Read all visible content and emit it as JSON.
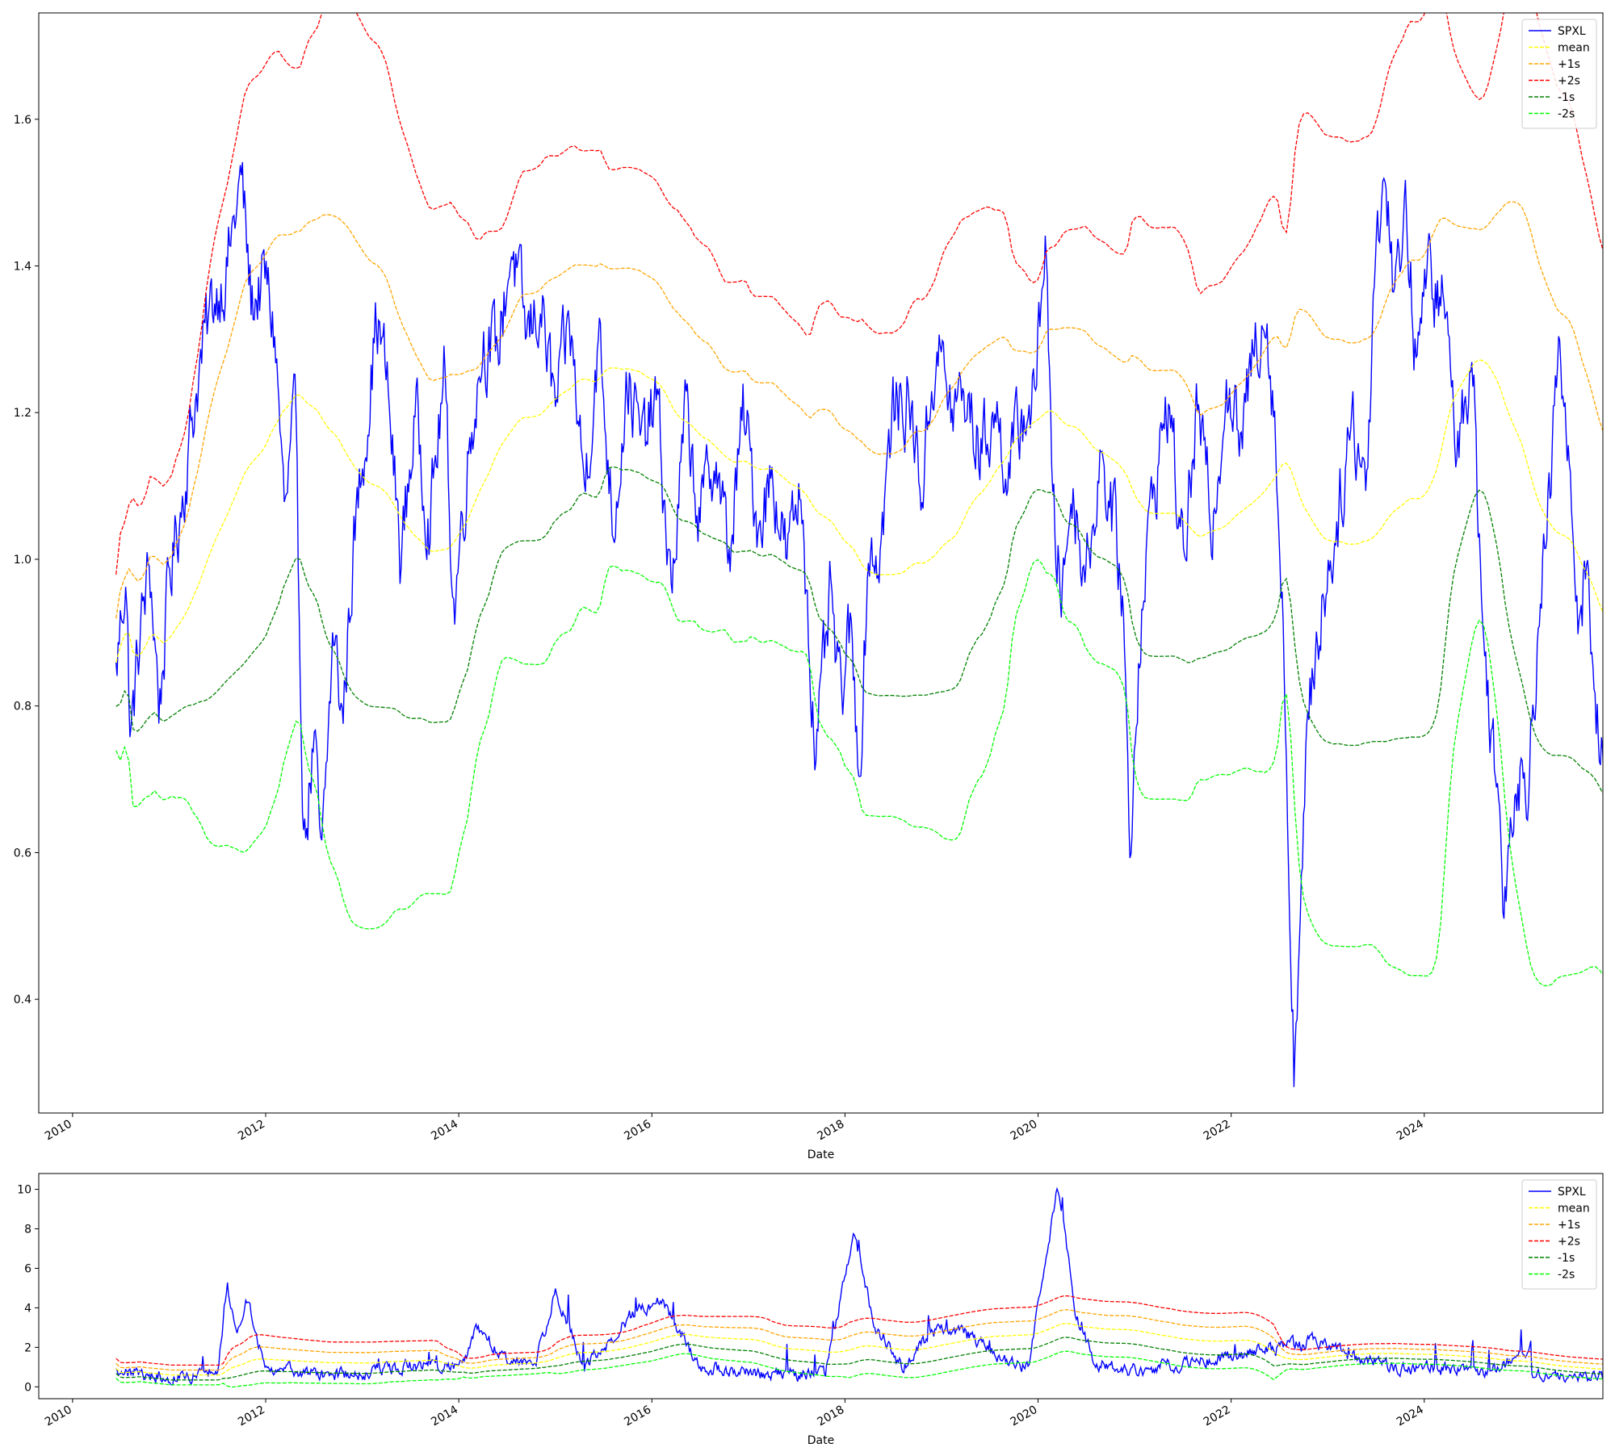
{
  "chart_data": [
    {
      "type": "line",
      "title": "",
      "xlabel": "Date",
      "ylabel": "",
      "xlim": [
        2009.65,
        2025.85
      ],
      "ylim": [
        0.245,
        1.745
      ],
      "x_ticks": [
        "2010",
        "2012",
        "2014",
        "2016",
        "2018",
        "2020",
        "2022",
        "2024"
      ],
      "y_ticks": [
        "0.4",
        "0.6",
        "0.8",
        "1.0",
        "1.2",
        "1.4",
        "1.6"
      ],
      "legend_position": "upper right",
      "grid": false,
      "series": [
        {
          "name": "SPXL",
          "color": "#0000ff",
          "style": "solid",
          "points": [
            [
              2010.45,
              0.84
            ],
            [
              2010.55,
              0.99
            ],
            [
              2010.6,
              0.75
            ],
            [
              2010.7,
              0.9
            ],
            [
              2010.8,
              0.99
            ],
            [
              2010.9,
              0.8
            ],
            [
              2011.0,
              0.97
            ],
            [
              2011.15,
              1.1
            ],
            [
              2011.3,
              1.25
            ],
            [
              2011.45,
              1.35
            ],
            [
              2011.6,
              1.4
            ],
            [
              2011.75,
              1.52
            ],
            [
              2011.85,
              1.35
            ],
            [
              2012.0,
              1.38
            ],
            [
              2012.1,
              1.3
            ],
            [
              2012.2,
              1.05
            ],
            [
              2012.3,
              1.2
            ],
            [
              2012.4,
              0.62
            ],
            [
              2012.5,
              0.75
            ],
            [
              2012.58,
              0.57
            ],
            [
              2012.7,
              0.9
            ],
            [
              2012.8,
              0.78
            ],
            [
              2012.9,
              1.0
            ],
            [
              2013.05,
              1.2
            ],
            [
              2013.15,
              1.33
            ],
            [
              2013.25,
              1.25
            ],
            [
              2013.4,
              1.0
            ],
            [
              2013.55,
              1.2
            ],
            [
              2013.7,
              1.05
            ],
            [
              2013.85,
              1.25
            ],
            [
              2013.95,
              0.93
            ],
            [
              2014.1,
              1.15
            ],
            [
              2014.25,
              1.3
            ],
            [
              2014.4,
              1.28
            ],
            [
              2014.55,
              1.43
            ],
            [
              2014.7,
              1.3
            ],
            [
              2014.85,
              1.35
            ],
            [
              2015.0,
              1.2
            ],
            [
              2015.15,
              1.32
            ],
            [
              2015.3,
              1.1
            ],
            [
              2015.45,
              1.3
            ],
            [
              2015.6,
              1.05
            ],
            [
              2015.75,
              1.25
            ],
            [
              2015.9,
              1.15
            ],
            [
              2016.05,
              1.22
            ],
            [
              2016.2,
              0.95
            ],
            [
              2016.35,
              1.2
            ],
            [
              2016.5,
              1.05
            ],
            [
              2016.65,
              1.15
            ],
            [
              2016.8,
              1.0
            ],
            [
              2016.95,
              1.2
            ],
            [
              2017.1,
              1.05
            ],
            [
              2017.25,
              1.12
            ],
            [
              2017.4,
              1.0
            ],
            [
              2017.55,
              1.1
            ],
            [
              2017.7,
              0.72
            ],
            [
              2017.85,
              0.95
            ],
            [
              2017.95,
              0.8
            ],
            [
              2018.05,
              0.9
            ],
            [
              2018.15,
              0.72
            ],
            [
              2018.25,
              1.02
            ],
            [
              2018.35,
              1.0
            ],
            [
              2018.5,
              1.2
            ],
            [
              2018.65,
              1.22
            ],
            [
              2018.8,
              1.1
            ],
            [
              2018.95,
              1.3
            ],
            [
              2019.1,
              1.2
            ],
            [
              2019.25,
              1.22
            ],
            [
              2019.4,
              1.15
            ],
            [
              2019.55,
              1.2
            ],
            [
              2019.7,
              1.12
            ],
            [
              2019.85,
              1.2
            ],
            [
              2019.97,
              1.22
            ],
            [
              2020.08,
              1.47
            ],
            [
              2020.15,
              1.05
            ],
            [
              2020.25,
              0.96
            ],
            [
              2020.35,
              1.1
            ],
            [
              2020.5,
              0.98
            ],
            [
              2020.65,
              1.15
            ],
            [
              2020.78,
              1.05
            ],
            [
              2020.88,
              0.95
            ],
            [
              2020.95,
              0.6
            ],
            [
              2021.05,
              0.9
            ],
            [
              2021.2,
              1.1
            ],
            [
              2021.35,
              1.22
            ],
            [
              2021.5,
              1.0
            ],
            [
              2021.65,
              1.2
            ],
            [
              2021.8,
              1.05
            ],
            [
              2021.95,
              1.25
            ],
            [
              2022.1,
              1.15
            ],
            [
              2022.25,
              1.3
            ],
            [
              2022.35,
              1.35
            ],
            [
              2022.45,
              1.2
            ],
            [
              2022.55,
              0.85
            ],
            [
              2022.65,
              0.32
            ],
            [
              2022.72,
              0.5
            ],
            [
              2022.8,
              0.8
            ],
            [
              2022.95,
              0.95
            ],
            [
              2023.1,
              1.05
            ],
            [
              2023.25,
              1.2
            ],
            [
              2023.4,
              1.1
            ],
            [
              2023.5,
              1.45
            ],
            [
              2023.6,
              1.52
            ],
            [
              2023.7,
              1.35
            ],
            [
              2023.8,
              1.5
            ],
            [
              2023.9,
              1.3
            ],
            [
              2024.05,
              1.38
            ],
            [
              2024.2,
              1.35
            ],
            [
              2024.35,
              1.15
            ],
            [
              2024.5,
              1.3
            ],
            [
              2024.6,
              0.9
            ],
            [
              2024.72,
              0.75
            ],
            [
              2024.82,
              0.55
            ],
            [
              2024.95,
              0.72
            ],
            [
              2025.05,
              0.68
            ],
            [
              2025.15,
              0.85
            ],
            [
              2025.28,
              1.05
            ],
            [
              2025.4,
              1.3
            ],
            [
              2025.5,
              1.1
            ],
            [
              2025.6,
              0.94
            ],
            [
              2025.7,
              1.0
            ],
            [
              2025.75,
              0.83
            ],
            [
              2025.95,
              0.58
            ],
            [
              2026.0,
              0.9
            ]
          ]
        },
        {
          "name": "mean",
          "color": "#ffff00",
          "style": "dashed",
          "points": []
        },
        {
          "name": "+1s",
          "color": "#ffa500",
          "style": "dashed",
          "points": []
        },
        {
          "name": "+2s",
          "color": "#ff0000",
          "style": "dashed",
          "points": []
        },
        {
          "name": "-1s",
          "color": "#008000",
          "style": "dashed",
          "points": []
        },
        {
          "name": "-2s",
          "color": "#00ff00",
          "style": "dashed",
          "points": []
        }
      ]
    },
    {
      "type": "line",
      "title": "",
      "xlabel": "Date",
      "ylabel": "",
      "xlim": [
        2009.65,
        2025.85
      ],
      "ylim": [
        -0.6,
        10.8
      ],
      "x_ticks": [
        "2010",
        "2012",
        "2014",
        "2016",
        "2018",
        "2020",
        "2022",
        "2024"
      ],
      "y_ticks": [
        "0",
        "2",
        "4",
        "6",
        "8",
        "10"
      ],
      "legend_position": "upper right",
      "grid": false,
      "series": [
        {
          "name": "SPXL",
          "color": "#0000ff",
          "style": "solid",
          "points": [
            [
              2010.45,
              0.8
            ],
            [
              2010.8,
              0.6
            ],
            [
              2011.2,
              0.5
            ],
            [
              2011.5,
              0.9
            ],
            [
              2011.6,
              5.3
            ],
            [
              2011.7,
              2.5
            ],
            [
              2011.8,
              4.5
            ],
            [
              2012.0,
              1.0
            ],
            [
              2012.5,
              0.6
            ],
            [
              2013.0,
              0.7
            ],
            [
              2013.5,
              1.1
            ],
            [
              2014.0,
              1.0
            ],
            [
              2014.2,
              3.0
            ],
            [
              2014.5,
              1.2
            ],
            [
              2014.8,
              1.3
            ],
            [
              2015.0,
              4.8
            ],
            [
              2015.3,
              1.0
            ],
            [
              2015.8,
              3.7
            ],
            [
              2016.1,
              4.3
            ],
            [
              2016.5,
              1.0
            ],
            [
              2017.0,
              0.7
            ],
            [
              2017.5,
              0.6
            ],
            [
              2017.8,
              0.8
            ],
            [
              2018.1,
              7.8
            ],
            [
              2018.3,
              3.2
            ],
            [
              2018.6,
              1.0
            ],
            [
              2018.9,
              2.8
            ],
            [
              2019.2,
              3.0
            ],
            [
              2019.6,
              1.5
            ],
            [
              2019.9,
              1.0
            ],
            [
              2020.2,
              10.2
            ],
            [
              2020.4,
              3.5
            ],
            [
              2020.6,
              1.2
            ],
            [
              2021.0,
              0.8
            ],
            [
              2021.5,
              1.2
            ],
            [
              2022.0,
              1.5
            ],
            [
              2022.5,
              2.0
            ],
            [
              2022.9,
              2.3
            ],
            [
              2023.3,
              1.4
            ],
            [
              2023.7,
              1.0
            ],
            [
              2024.2,
              0.9
            ],
            [
              2024.7,
              0.8
            ],
            [
              2025.1,
              1.8
            ],
            [
              2025.1,
              0.6
            ]
          ]
        },
        {
          "name": "mean",
          "color": "#ffff00",
          "style": "dashed",
          "points": []
        },
        {
          "name": "+1s",
          "color": "#ffa500",
          "style": "dashed",
          "points": []
        },
        {
          "name": "+2s",
          "color": "#ff0000",
          "style": "dashed",
          "points": []
        },
        {
          "name": "-1s",
          "color": "#008000",
          "style": "dashed",
          "points": []
        },
        {
          "name": "-2s",
          "color": "#00ff00",
          "style": "dashed",
          "points": []
        }
      ]
    }
  ]
}
